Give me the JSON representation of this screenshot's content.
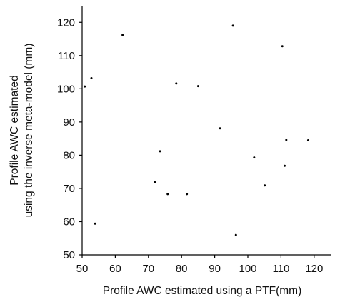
{
  "chart_data": {
    "type": "scatter",
    "title": "",
    "xlabel": "Profile AWC estimated using a PTF(mm)",
    "ylabel_lines": [
      "Profile AWC estimated",
      "using the inverse meta-model (mm)"
    ],
    "xlim": [
      50,
      125
    ],
    "ylim": [
      50,
      125
    ],
    "x_ticks": [
      50,
      60,
      70,
      80,
      90,
      100,
      110,
      120
    ],
    "y_ticks": [
      50,
      60,
      70,
      80,
      90,
      100,
      110,
      120
    ],
    "x_tick_labels": [
      "50",
      "60",
      "70",
      "80",
      "90",
      "100",
      "110",
      "120"
    ],
    "y_tick_labels": [
      "50",
      "60",
      "70",
      "80",
      "90",
      "100",
      "110",
      "120"
    ],
    "grid": false,
    "legend": "none",
    "marker_color": "#000000",
    "points": [
      {
        "x": 50.8,
        "y": 100.7
      },
      {
        "x": 52.8,
        "y": 103.2
      },
      {
        "x": 53.9,
        "y": 59.4
      },
      {
        "x": 62.2,
        "y": 116.2
      },
      {
        "x": 71.9,
        "y": 71.9
      },
      {
        "x": 73.5,
        "y": 81.2
      },
      {
        "x": 75.8,
        "y": 68.3
      },
      {
        "x": 78.4,
        "y": 101.6
      },
      {
        "x": 81.6,
        "y": 68.3
      },
      {
        "x": 85.0,
        "y": 100.8
      },
      {
        "x": 91.6,
        "y": 88.1
      },
      {
        "x": 95.5,
        "y": 119.0
      },
      {
        "x": 96.4,
        "y": 56.0
      },
      {
        "x": 101.9,
        "y": 79.3
      },
      {
        "x": 105.1,
        "y": 70.9
      },
      {
        "x": 110.4,
        "y": 112.8
      },
      {
        "x": 111.1,
        "y": 76.8
      },
      {
        "x": 111.6,
        "y": 84.6
      },
      {
        "x": 118.2,
        "y": 84.5
      }
    ]
  }
}
